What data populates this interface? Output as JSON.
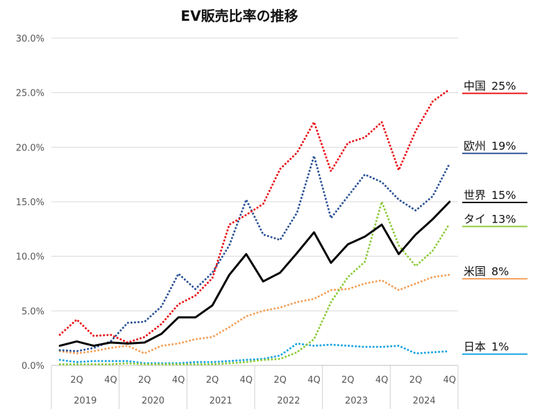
{
  "chart_data": {
    "type": "line",
    "title": "EV販売比率の推移",
    "xlabel": "",
    "ylabel": "",
    "ylim": [
      0,
      30
    ],
    "yticks": [
      "0.0%",
      "5.0%",
      "10.0%",
      "15.0%",
      "20.0%",
      "25.0%",
      "30.0%"
    ],
    "grid": "horizontal",
    "legend": "right",
    "x": [
      "2019Q1",
      "2019Q2",
      "2019Q3",
      "2019Q4",
      "2020Q1",
      "2020Q2",
      "2020Q3",
      "2020Q4",
      "2021Q1",
      "2021Q2",
      "2021Q3",
      "2021Q4",
      "2022Q1",
      "2022Q2",
      "2022Q3",
      "2022Q4",
      "2023Q1",
      "2023Q2",
      "2023Q3",
      "2023Q4",
      "2024Q1",
      "2024Q2",
      "2024Q3",
      "2024Q4"
    ],
    "quarter_labels": [
      "2Q",
      "4Q",
      "2Q",
      "4Q",
      "2Q",
      "4Q",
      "2Q",
      "4Q",
      "2Q",
      "4Q",
      "2Q",
      "4Q"
    ],
    "year_labels": [
      "2019",
      "2020",
      "2021",
      "2022",
      "2023",
      "2024"
    ],
    "series": [
      {
        "name": "中国",
        "value_label": "25%",
        "color": "#e8141b",
        "style": "dotted",
        "values": [
          2.8,
          4.2,
          2.7,
          2.8,
          2.1,
          2.6,
          3.8,
          5.6,
          6.4,
          8.0,
          12.9,
          13.8,
          14.8,
          18.0,
          19.5,
          22.3,
          17.8,
          20.4,
          20.9,
          22.3,
          17.9,
          21.5,
          24.2,
          25.3
        ]
      },
      {
        "name": "欧州",
        "value_label": "19%",
        "color": "#2f5597",
        "style": "dotted",
        "values": [
          1.4,
          1.3,
          1.6,
          2.2,
          3.9,
          4.0,
          5.4,
          8.4,
          7.0,
          8.5,
          11.0,
          15.2,
          12.0,
          11.5,
          14.0,
          19.2,
          13.5,
          15.5,
          17.5,
          16.8,
          15.2,
          14.2,
          15.5,
          18.5
        ]
      },
      {
        "name": "世界",
        "value_label": "15%",
        "color": "#000000",
        "style": "solid",
        "values": [
          1.8,
          2.2,
          1.8,
          2.1,
          2.0,
          2.1,
          2.9,
          4.4,
          4.4,
          5.5,
          8.3,
          10.2,
          7.7,
          8.5,
          10.3,
          12.2,
          9.4,
          11.1,
          11.8,
          12.9,
          10.2,
          12.0,
          13.4,
          15.0
        ]
      },
      {
        "name": "タイ",
        "value_label": "13%",
        "color": "#8fcc3f",
        "style": "dotted",
        "values": [
          0.1,
          0.1,
          0.1,
          0.1,
          0.2,
          0.1,
          0.1,
          0.1,
          0.1,
          0.1,
          0.2,
          0.3,
          0.5,
          0.6,
          1.2,
          2.4,
          5.8,
          8.1,
          9.5,
          15.0,
          11.0,
          9.1,
          10.5,
          13.0
        ]
      },
      {
        "name": "米国",
        "value_label": "8%",
        "color": "#f4a15a",
        "style": "dotted",
        "values": [
          1.3,
          1.1,
          1.3,
          1.6,
          1.8,
          1.1,
          1.8,
          2.0,
          2.4,
          2.6,
          3.5,
          4.5,
          5.0,
          5.3,
          5.8,
          6.1,
          6.9,
          7.0,
          7.5,
          7.8,
          6.9,
          7.5,
          8.1,
          8.3
        ]
      },
      {
        "name": "日本",
        "value_label": "1%",
        "color": "#1aa5e0",
        "style": "dotted",
        "values": [
          0.5,
          0.3,
          0.4,
          0.4,
          0.4,
          0.2,
          0.2,
          0.2,
          0.3,
          0.3,
          0.4,
          0.5,
          0.6,
          0.9,
          2.0,
          1.8,
          1.9,
          1.8,
          1.7,
          1.7,
          1.8,
          1.1,
          1.2,
          1.3
        ]
      }
    ]
  }
}
